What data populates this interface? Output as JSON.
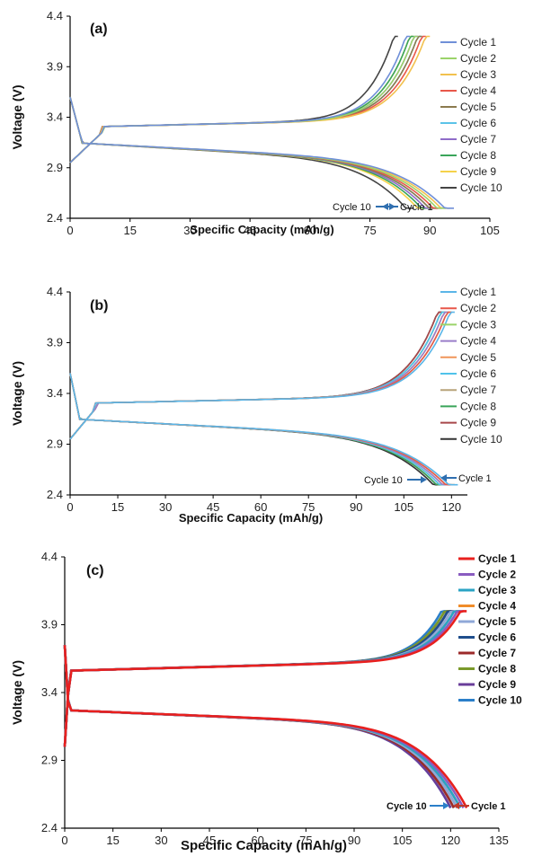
{
  "chart_data": [
    {
      "type": "line",
      "panel_label": "(a)",
      "xlabel": "Specific Capacity (mAh/g)",
      "ylabel": "Voltage (V)",
      "xlim": [
        0,
        105
      ],
      "ylim": [
        2.4,
        4.4
      ],
      "xticks": [
        "0",
        "15",
        "30",
        "45",
        "60",
        "75",
        "90",
        "105"
      ],
      "yticks": [
        "2.4",
        "2.9",
        "3.4",
        "3.9",
        "4.4"
      ],
      "legend_position": "right",
      "annotations": [
        {
          "text": "Cycle 10",
          "x": 87,
          "y": 2.5,
          "arrow": "right"
        },
        {
          "text": "Cycle 1",
          "x": 95,
          "y": 2.5,
          "arrow": "left"
        }
      ],
      "series": [
        {
          "name": "Cycle 1",
          "color": "#6f8fd8",
          "charge_end": 85,
          "discharge_end": 96,
          "v_top": 4.2
        },
        {
          "name": "Cycle 2",
          "color": "#9bd36a",
          "charge_end": 87,
          "discharge_end": 94,
          "v_top": 4.2
        },
        {
          "name": "Cycle 3",
          "color": "#f2c14e",
          "charge_end": 90,
          "discharge_end": 95,
          "v_top": 4.2
        },
        {
          "name": "Cycle 4",
          "color": "#e8574a",
          "charge_end": 89,
          "discharge_end": 93,
          "v_top": 4.2
        },
        {
          "name": "Cycle 5",
          "color": "#8b7a4e",
          "charge_end": 88,
          "discharge_end": 92,
          "v_top": 4.2
        },
        {
          "name": "Cycle 6",
          "color": "#5bc3e8",
          "charge_end": 88,
          "discharge_end": 92,
          "v_top": 4.2
        },
        {
          "name": "Cycle 7",
          "color": "#8f6cc9",
          "charge_end": 87,
          "discharge_end": 91,
          "v_top": 4.2
        },
        {
          "name": "Cycle 8",
          "color": "#3aa55a",
          "charge_end": 86,
          "discharge_end": 90,
          "v_top": 4.2
        },
        {
          "name": "Cycle 9",
          "color": "#f5d24a",
          "charge_end": 86,
          "discharge_end": 89,
          "v_top": 4.2
        },
        {
          "name": "Cycle 10",
          "color": "#444444",
          "charge_end": 82,
          "discharge_end": 86,
          "v_top": 4.2
        }
      ]
    },
    {
      "type": "line",
      "panel_label": "(b)",
      "xlabel": "Specific Capacity (mAh/g)",
      "ylabel": "Voltage (V)",
      "xlim": [
        0,
        125
      ],
      "ylim": [
        2.4,
        4.4
      ],
      "xticks": [
        "0",
        "15",
        "30",
        "45",
        "60",
        "75",
        "90",
        "105",
        "120"
      ],
      "yticks": [
        "2.4",
        "2.9",
        "3.4",
        "3.9",
        "4.4"
      ],
      "legend_position": "right",
      "annotations": [
        {
          "text": "Cycle 10",
          "x": 116,
          "y": 2.55,
          "arrow": "right"
        },
        {
          "text": "Cycle 1",
          "x": 122,
          "y": 2.57,
          "arrow": "left"
        }
      ],
      "series": [
        {
          "name": "Cycle 1",
          "color": "#5bb6e8",
          "charge_end": 121,
          "discharge_end": 122,
          "v_top": 4.2
        },
        {
          "name": "Cycle 2",
          "color": "#e8574a",
          "charge_end": 120,
          "discharge_end": 121,
          "v_top": 4.2
        },
        {
          "name": "Cycle 3",
          "color": "#9bd36a",
          "charge_end": 120,
          "discharge_end": 121,
          "v_top": 4.2
        },
        {
          "name": "Cycle 4",
          "color": "#9a7ec9",
          "charge_end": 119,
          "discharge_end": 120,
          "v_top": 4.2
        },
        {
          "name": "Cycle 5",
          "color": "#f0955a",
          "charge_end": 119,
          "discharge_end": 120,
          "v_top": 4.2
        },
        {
          "name": "Cycle 6",
          "color": "#4fc3ea",
          "charge_end": 118,
          "discharge_end": 119,
          "v_top": 4.2
        },
        {
          "name": "Cycle 7",
          "color": "#b8a47a",
          "charge_end": 118,
          "discharge_end": 119,
          "v_top": 4.2
        },
        {
          "name": "Cycle 8",
          "color": "#3aa55a",
          "charge_end": 118,
          "discharge_end": 118,
          "v_top": 4.2
        },
        {
          "name": "Cycle 9",
          "color": "#a8474a",
          "charge_end": 117,
          "discharge_end": 118,
          "v_top": 4.2
        },
        {
          "name": "Cycle 10",
          "color": "#333333",
          "charge_end": 117,
          "discharge_end": 117,
          "v_top": 4.2
        }
      ]
    },
    {
      "type": "line",
      "panel_label": "(c)",
      "xlabel": "Specific Capacity (mAh/g)",
      "ylabel": "Voltage (V)",
      "xlim": [
        0,
        135
      ],
      "ylim": [
        2.4,
        4.4
      ],
      "xticks": [
        "0",
        "15",
        "30",
        "45",
        "60",
        "75",
        "90",
        "105",
        "120",
        "135"
      ],
      "yticks": [
        "2.4",
        "2.9",
        "3.4",
        "3.9",
        "4.4"
      ],
      "legend_position": "right",
      "annotations": [
        {
          "text": "Cycle 10",
          "x": 119,
          "y": 2.53,
          "arrow": "right"
        },
        {
          "text": "Cycle 1",
          "x": 124,
          "y": 2.53,
          "arrow": "left"
        }
      ],
      "series": [
        {
          "name": "Cycle 1",
          "color": "#e8201e",
          "charge_end": 125,
          "discharge_end": 125,
          "v_top": 4.0
        },
        {
          "name": "Cycle 2",
          "color": "#8a5cc0",
          "charge_end": 124,
          "discharge_end": 124,
          "v_top": 4.0
        },
        {
          "name": "Cycle 3",
          "color": "#2aa3c4",
          "charge_end": 123,
          "discharge_end": 123,
          "v_top": 4.0
        },
        {
          "name": "Cycle 4",
          "color": "#f08c2a",
          "charge_end": 123,
          "discharge_end": 123,
          "v_top": 4.0
        },
        {
          "name": "Cycle 5",
          "color": "#8fa8d8",
          "charge_end": 122,
          "discharge_end": 122,
          "v_top": 4.0
        },
        {
          "name": "Cycle 6",
          "color": "#1f4e8c",
          "charge_end": 121,
          "discharge_end": 122,
          "v_top": 4.0
        },
        {
          "name": "Cycle 7",
          "color": "#9c2a2a",
          "charge_end": 121,
          "discharge_end": 121,
          "v_top": 4.0
        },
        {
          "name": "Cycle 8",
          "color": "#7a9a2a",
          "charge_end": 120,
          "discharge_end": 121,
          "v_top": 4.0
        },
        {
          "name": "Cycle 9",
          "color": "#6a3d9a",
          "charge_end": 120,
          "discharge_end": 120,
          "v_top": 4.0
        },
        {
          "name": "Cycle 10",
          "color": "#2b7fc9",
          "charge_end": 119,
          "discharge_end": 120,
          "v_top": 4.0
        }
      ]
    }
  ]
}
